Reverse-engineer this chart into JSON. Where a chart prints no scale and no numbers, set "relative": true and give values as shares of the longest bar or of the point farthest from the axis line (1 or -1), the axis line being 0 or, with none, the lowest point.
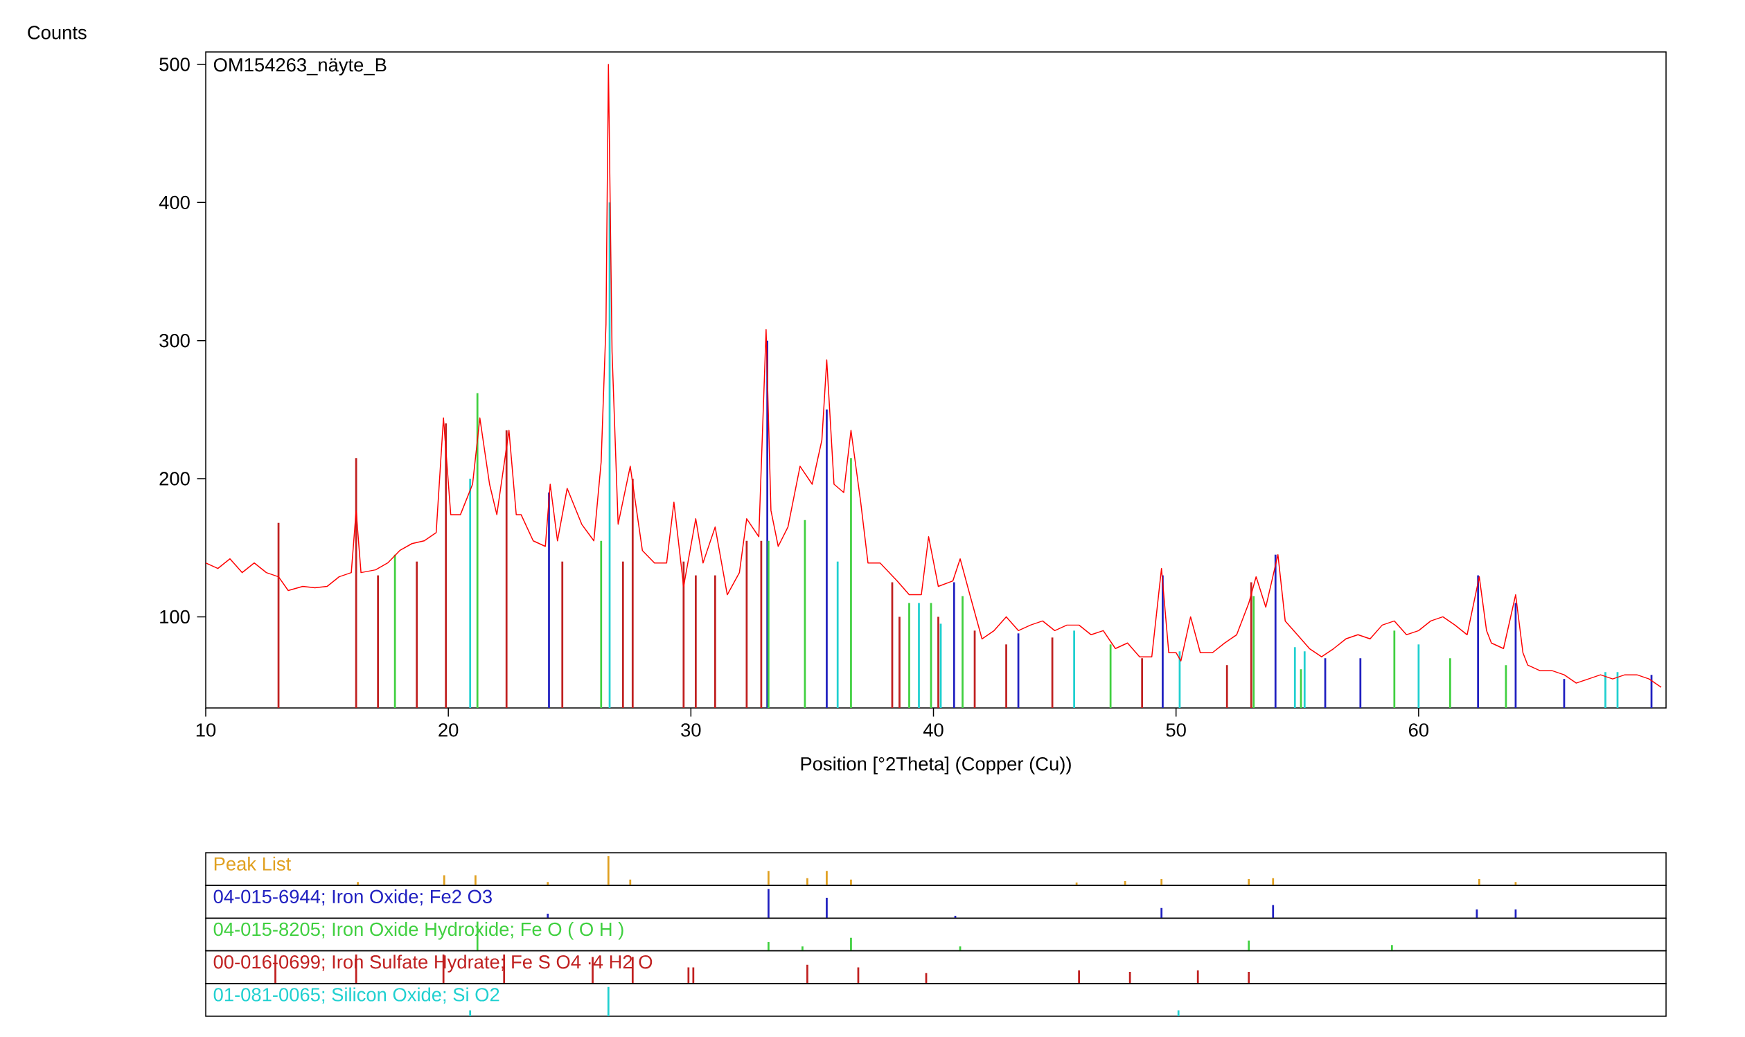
{
  "chart_data": [
    {
      "type": "line",
      "title": "OM154263_näyte_B",
      "xlabel": "Position [°2Theta] (Copper (Cu))",
      "ylabel": "Counts",
      "xlim": [
        10,
        70.2
      ],
      "ylim": [
        34,
        509
      ],
      "xticks": [
        10,
        20,
        30,
        40,
        50,
        60
      ],
      "yticks": [
        100,
        200,
        300,
        400,
        500
      ],
      "series": [
        {
          "color": "#ff0000",
          "x": [
            10,
            10.5,
            11,
            11.5,
            12,
            12.5,
            13,
            13.4,
            14,
            14.5,
            15,
            15.5,
            16,
            16.2,
            16.4,
            17,
            17.5,
            18,
            18.5,
            19,
            19.5,
            19.8,
            20.1,
            20.5,
            21,
            21.3,
            21.7,
            22,
            22.5,
            22.8,
            23,
            23.5,
            24,
            24.2,
            24.5,
            24.9,
            25.5,
            26,
            26.3,
            26.5,
            26.6,
            26.75,
            27,
            27.5,
            28,
            28.5,
            29,
            29.3,
            29.7,
            30.2,
            30.5,
            31,
            31.5,
            32,
            32.3,
            32.8,
            33.1,
            33.3,
            33.6,
            34,
            34.5,
            35,
            35.4,
            35.6,
            35.9,
            36.3,
            36.6,
            37,
            37.3,
            37.8,
            38.5,
            39,
            39.5,
            39.8,
            40.2,
            40.8,
            41.1,
            41.5,
            42,
            42.5,
            43,
            43.5,
            44,
            44.5,
            45,
            45.5,
            46,
            46.5,
            47,
            47.5,
            48,
            48.5,
            49,
            49.4,
            49.7,
            50,
            50.2,
            50.6,
            51,
            51.5,
            52,
            52.5,
            53,
            53.3,
            53.7,
            54.2,
            54.5,
            55,
            55.5,
            56,
            56.5,
            57,
            57.5,
            58,
            58.5,
            59,
            59.5,
            60,
            60.5,
            61,
            61.5,
            62,
            62.5,
            62.8,
            63,
            63.5,
            64,
            64.3,
            64.5,
            65,
            65.5,
            66,
            66.5,
            67,
            67.5,
            68,
            68.5,
            69,
            69.5,
            70
          ],
          "values": [
            139,
            135,
            142,
            132,
            139,
            132,
            129,
            119,
            122,
            121,
            122,
            129,
            132,
            177,
            132,
            134,
            139,
            148,
            153,
            155,
            161,
            244,
            174,
            174,
            196,
            244,
            196,
            174,
            235,
            174,
            174,
            155,
            151,
            196,
            155,
            193,
            167,
            155,
            212,
            312,
            500,
            292,
            167,
            209,
            148,
            139,
            139,
            183,
            122,
            171,
            139,
            165,
            116,
            132,
            171,
            158,
            308,
            177,
            151,
            165,
            209,
            196,
            228,
            286,
            196,
            190,
            235,
            183,
            139,
            139,
            126,
            116,
            116,
            158,
            122,
            126,
            142,
            116,
            84,
            90,
            100,
            90,
            94,
            97,
            90,
            94,
            94,
            87,
            90,
            77,
            81,
            71,
            71,
            135,
            74,
            74,
            68,
            100,
            74,
            74,
            81,
            87,
            110,
            129,
            107,
            145,
            97,
            87,
            77,
            71,
            77,
            84,
            87,
            84,
            94,
            97,
            87,
            90,
            97,
            100,
            94,
            87,
            129,
            90,
            81,
            77,
            116,
            74,
            65,
            61,
            61,
            58,
            52,
            55,
            58,
            55,
            58,
            58,
            55,
            49
          ]
        },
        {
          "type": "bar",
          "color": "#2020c0",
          "x": [
            24.15,
            33.15,
            35.6,
            40.85,
            43.5,
            49.45,
            54.1,
            56.15,
            57.6,
            62.45,
            64.0,
            66.0,
            69.6
          ],
          "values": [
            190,
            300,
            250,
            125,
            88,
            130,
            145,
            70,
            70,
            130,
            110,
            55,
            58
          ]
        },
        {
          "type": "bar",
          "color": "#40d040",
          "x": [
            17.8,
            21.2,
            26.3,
            33.2,
            34.7,
            36.6,
            39.0,
            39.9,
            41.2,
            47.3,
            53.2,
            55.15,
            59.0,
            61.3,
            63.6
          ],
          "values": [
            145,
            262,
            155,
            155,
            170,
            215,
            110,
            110,
            115,
            80,
            115,
            62,
            90,
            70,
            65
          ]
        },
        {
          "type": "bar",
          "color": "#c02020",
          "x": [
            13.0,
            16.2,
            17.1,
            18.7,
            19.9,
            22.4,
            24.7,
            27.2,
            27.6,
            29.7,
            30.2,
            31.0,
            32.3,
            32.9,
            38.3,
            38.6,
            40.2,
            41.7,
            43.0,
            44.9,
            48.6,
            52.1,
            53.1
          ],
          "values": [
            168,
            215,
            130,
            140,
            240,
            235,
            140,
            140,
            200,
            140,
            130,
            130,
            155,
            155,
            125,
            100,
            100,
            90,
            80,
            85,
            70,
            65,
            125
          ]
        },
        {
          "type": "bar",
          "color": "#20d0d0",
          "x": [
            20.9,
            26.65,
            36.05,
            39.4,
            40.3,
            45.8,
            50.15,
            54.9,
            55.3,
            60.0,
            67.7,
            68.2
          ],
          "values": [
            200,
            400,
            140,
            110,
            95,
            90,
            75,
            78,
            75,
            80,
            60,
            60
          ]
        }
      ]
    },
    {
      "type": "bar",
      "relative": true,
      "title": "Peak List",
      "xlim": [
        10,
        70.2
      ],
      "series": [
        {
          "color": "#e0a020",
          "x": [
            16.27,
            19.83,
            21.12,
            24.1,
            26.6,
            27.5,
            33.2,
            34.8,
            35.6,
            36.6,
            45.9,
            47.9,
            49.4,
            53.0,
            54.0,
            62.5,
            64.0
          ],
          "values": [
            0.12,
            0.35,
            0.35,
            0.12,
            1,
            0.2,
            0.5,
            0.25,
            0.5,
            0.2,
            0.1,
            0.15,
            0.22,
            0.22,
            0.25,
            0.22,
            0.12
          ]
        }
      ]
    },
    {
      "type": "bar",
      "relative": true,
      "title": "04-015-6944; Iron Oxide; Fe2 O3",
      "xlim": [
        10,
        70.2
      ],
      "series": [
        {
          "color": "#2020c0",
          "x": [
            24.1,
            33.2,
            35.6,
            40.9,
            49.4,
            54.0,
            62.4,
            64.0
          ],
          "values": [
            0.15,
            1,
            0.7,
            0.08,
            0.35,
            0.45,
            0.3,
            0.3
          ]
        }
      ]
    },
    {
      "type": "bar",
      "relative": true,
      "title": "04-015-8205; Iron Oxide Hydroxide; Fe O ( O H )",
      "xlim": [
        10,
        70.2
      ],
      "series": [
        {
          "color": "#40d040",
          "x": [
            21.2,
            33.2,
            34.6,
            36.6,
            41.1,
            53.0,
            58.9
          ],
          "values": [
            1,
            0.3,
            0.15,
            0.45,
            0.15,
            0.35,
            0.2
          ]
        }
      ]
    },
    {
      "type": "bar",
      "relative": true,
      "title": "00-016-0699; Iron Sulfate Hydrate; Fe S O4 ·4 H2 O",
      "xlim": [
        10,
        70.2
      ],
      "series": [
        {
          "color": "#c02020",
          "x": [
            12.87,
            16.2,
            19.8,
            22.3,
            25.95,
            27.6,
            29.9,
            30.1,
            34.8,
            36.9,
            39.7,
            46.0,
            48.1,
            50.9,
            53.0
          ],
          "values": [
            1,
            1,
            1,
            1,
            0.91,
            0.91,
            0.55,
            0.55,
            0.64,
            0.55,
            0.36,
            0.45,
            0.4,
            0.45,
            0.4
          ]
        }
      ]
    },
    {
      "type": "bar",
      "relative": true,
      "title": "01-081-0065; Silicon Oxide; Si O2",
      "xlim": [
        10,
        70.2
      ],
      "series": [
        {
          "color": "#20d0d0",
          "x": [
            20.9,
            26.6,
            50.1
          ],
          "values": [
            0.2,
            1,
            0.2
          ]
        }
      ]
    }
  ]
}
